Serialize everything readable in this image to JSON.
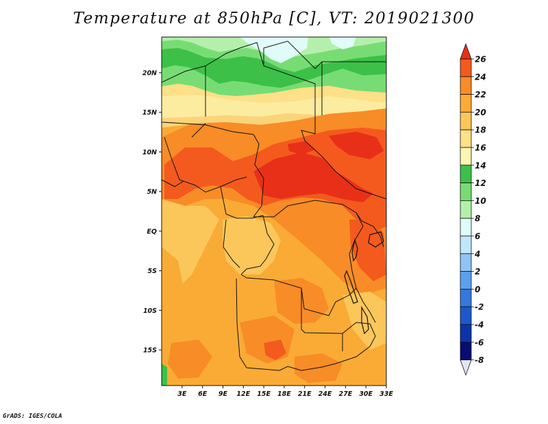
{
  "title": "Temperature at 850hPa [C], VT: 2019021300",
  "credit": "GrADS: IGES/COLA",
  "map": {
    "lon_range": [
      0,
      33
    ],
    "lat_range": [
      -19.5,
      24.5
    ],
    "x_ticks": [
      {
        "value": 3,
        "label": "3E"
      },
      {
        "value": 6,
        "label": "6E"
      },
      {
        "value": 9,
        "label": "9E"
      },
      {
        "value": 12,
        "label": "12E"
      },
      {
        "value": 15,
        "label": "15E"
      },
      {
        "value": 18,
        "label": "18E"
      },
      {
        "value": 21,
        "label": "21E"
      },
      {
        "value": 24,
        "label": "24E"
      },
      {
        "value": 27,
        "label": "27E"
      },
      {
        "value": 30,
        "label": "30E"
      },
      {
        "value": 33,
        "label": "33E"
      }
    ],
    "y_ticks": [
      {
        "value": 20,
        "label": "20N"
      },
      {
        "value": 15,
        "label": "15N"
      },
      {
        "value": 10,
        "label": "10N"
      },
      {
        "value": 5,
        "label": "5N"
      },
      {
        "value": 0,
        "label": "EQ"
      },
      {
        "value": -5,
        "label": "5S"
      },
      {
        "value": -10,
        "label": "10S"
      },
      {
        "value": -15,
        "label": "15S"
      }
    ]
  },
  "colorbar": {
    "levels": [
      "26",
      "24",
      "22",
      "20",
      "18",
      "16",
      "14",
      "12",
      "10",
      "8",
      "6",
      "4",
      "2",
      "0",
      "-2",
      "-4",
      "-6",
      "-8"
    ],
    "colors": [
      "#e83018",
      "#f45a1e",
      "#f88c26",
      "#f9ab36",
      "#fbc75a",
      "#fde088",
      "#fcf6b4",
      "#3cc048",
      "#78dc74",
      "#b4f0ac",
      "#e0fcf8",
      "#c0e8fc",
      "#90c4f4",
      "#5ca0ec",
      "#3478dc",
      "#1e58c8",
      "#0c34a8",
      "#080c70"
    ],
    "low_extend_color": "#e4e4f8"
  }
}
